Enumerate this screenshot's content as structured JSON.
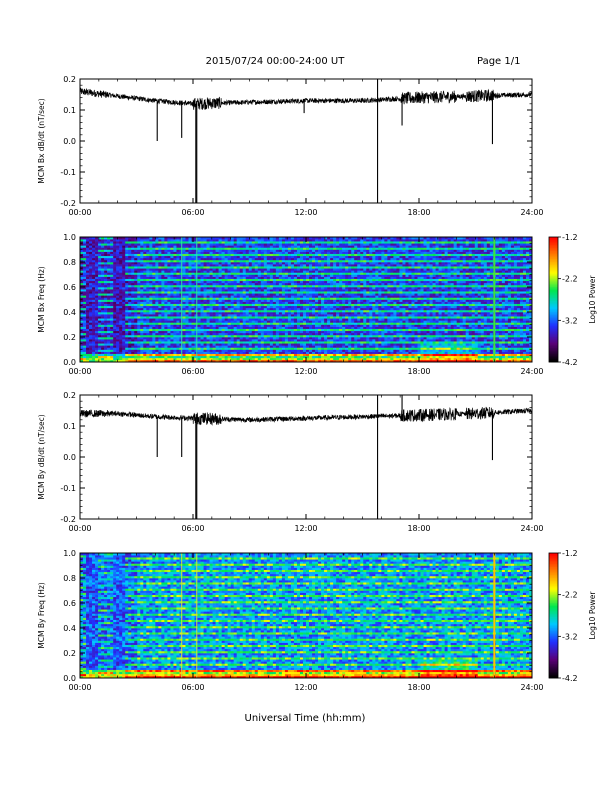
{
  "header": {
    "date_range": "2015/07/24  00:00-24:00 UT",
    "page": "Page 1/1"
  },
  "footer": {
    "xlabel": "Universal Time (hh:mm)"
  },
  "colors": {
    "trace": "#000000",
    "background": "#ffffff",
    "colormap": [
      "#000000",
      "#5a0078",
      "#2030ff",
      "#00c8ff",
      "#00e650",
      "#ffff00",
      "#ff8000",
      "#ff0000"
    ]
  },
  "chart_data": [
    {
      "type": "line",
      "ylabel": "MCM Bx dB/dt (nT/sec)",
      "xlim": [
        0,
        24
      ],
      "ylim": [
        -0.2,
        0.2
      ],
      "xticks": [
        "00:00",
        "06:00",
        "12:00",
        "18:00",
        "24:00"
      ],
      "yticks": [
        "-0.2",
        "-0.1",
        "0.0",
        "0.1",
        "0.2"
      ],
      "baseline": [
        {
          "t": 0,
          "v": 0.16
        },
        {
          "t": 2,
          "v": 0.145
        },
        {
          "t": 4,
          "v": 0.13
        },
        {
          "t": 6,
          "v": 0.12
        },
        {
          "t": 9,
          "v": 0.125
        },
        {
          "t": 12,
          "v": 0.13
        },
        {
          "t": 15,
          "v": 0.13
        },
        {
          "t": 18,
          "v": 0.14
        },
        {
          "t": 21,
          "v": 0.145
        },
        {
          "t": 24,
          "v": 0.15
        }
      ],
      "spikes": [
        {
          "t": 4.1,
          "v": 0.0
        },
        {
          "t": 5.4,
          "v": 0.01
        },
        {
          "t": 6.15,
          "v": -0.2
        },
        {
          "t": 6.2,
          "v": -0.2
        },
        {
          "t": 11.9,
          "v": 0.09
        },
        {
          "t": 15.8,
          "v": -0.2
        },
        {
          "t": 15.8,
          "v": 0.2
        },
        {
          "t": 17.1,
          "v": 0.05
        },
        {
          "t": 21.9,
          "v": -0.01
        }
      ]
    },
    {
      "type": "heatmap",
      "ylabel": "MCM Bx Freq (Hz)",
      "xlim": [
        0,
        24
      ],
      "ylim": [
        0,
        1
      ],
      "xticks": [
        "00:00",
        "06:00",
        "12:00",
        "18:00",
        "24:00"
      ],
      "yticks": [
        "0.0",
        "0.2",
        "0.4",
        "0.6",
        "0.8",
        "1.0"
      ],
      "colorbar": {
        "label": "Log10 Power",
        "range": [
          -4.2,
          -1.2
        ],
        "ticks": [
          "-1.2",
          "-2.2",
          "-3.2",
          "-4.2"
        ]
      },
      "bright_times": [
        5.4,
        6.2,
        22.0
      ]
    },
    {
      "type": "line",
      "ylabel": "MCM By dB/dt (nT/sec)",
      "xlim": [
        0,
        24
      ],
      "ylim": [
        -0.2,
        0.2
      ],
      "xticks": [
        "00:00",
        "06:00",
        "12:00",
        "18:00",
        "24:00"
      ],
      "yticks": [
        "-0.2",
        "-0.1",
        "0.0",
        "0.1",
        "0.2"
      ],
      "baseline": [
        {
          "t": 0,
          "v": 0.14
        },
        {
          "t": 2,
          "v": 0.14
        },
        {
          "t": 4,
          "v": 0.13
        },
        {
          "t": 6,
          "v": 0.125
        },
        {
          "t": 9,
          "v": 0.12
        },
        {
          "t": 12,
          "v": 0.125
        },
        {
          "t": 15,
          "v": 0.13
        },
        {
          "t": 18,
          "v": 0.135
        },
        {
          "t": 21,
          "v": 0.14
        },
        {
          "t": 24,
          "v": 0.15
        }
      ],
      "spikes": [
        {
          "t": 4.1,
          "v": 0.0
        },
        {
          "t": 5.4,
          "v": 0.0
        },
        {
          "t": 6.15,
          "v": -0.2
        },
        {
          "t": 6.2,
          "v": -0.2
        },
        {
          "t": 15.8,
          "v": -0.2
        },
        {
          "t": 15.8,
          "v": 0.2
        },
        {
          "t": 17.1,
          "v": 0.2
        },
        {
          "t": 21.9,
          "v": -0.01
        }
      ]
    },
    {
      "type": "heatmap",
      "ylabel": "MCM By Freq (Hz)",
      "xlim": [
        0,
        24
      ],
      "ylim": [
        0,
        1
      ],
      "xticks": [
        "00:00",
        "06:00",
        "12:00",
        "18:00",
        "24:00"
      ],
      "yticks": [
        "0.0",
        "0.2",
        "0.4",
        "0.6",
        "0.8",
        "1.0"
      ],
      "colorbar": {
        "label": "Log10 Power",
        "range": [
          -4.2,
          -1.2
        ],
        "ticks": [
          "-1.2",
          "-2.2",
          "-3.2",
          "-4.2"
        ]
      },
      "bright_times": [
        5.4,
        6.2,
        22.0
      ]
    }
  ]
}
